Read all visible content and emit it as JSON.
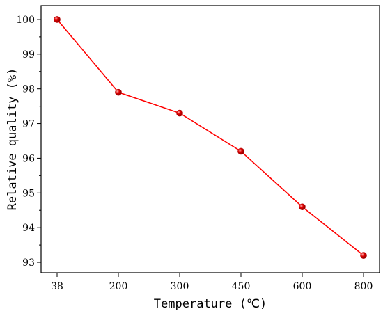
{
  "chart_data": {
    "type": "line",
    "title": "",
    "xlabel": "Temperature (℃)",
    "ylabel": "Relative quality (%)",
    "categories": [
      "38",
      "200",
      "300",
      "450",
      "600",
      "800"
    ],
    "series": [
      {
        "values": [
          100.0,
          97.9,
          97.3,
          96.2,
          94.6,
          93.2
        ]
      }
    ],
    "ylim": [
      92.7,
      100.4
    ],
    "yticks": [
      93,
      94,
      95,
      96,
      97,
      98,
      99,
      100
    ],
    "ytick_labels": [
      "93",
      "94",
      "95",
      "96",
      "97",
      "98",
      "99",
      "100"
    ],
    "grid": false,
    "legend": "none",
    "colors": {
      "line": "#ff0000",
      "marker": "#e00000",
      "axis": "#000000"
    }
  }
}
